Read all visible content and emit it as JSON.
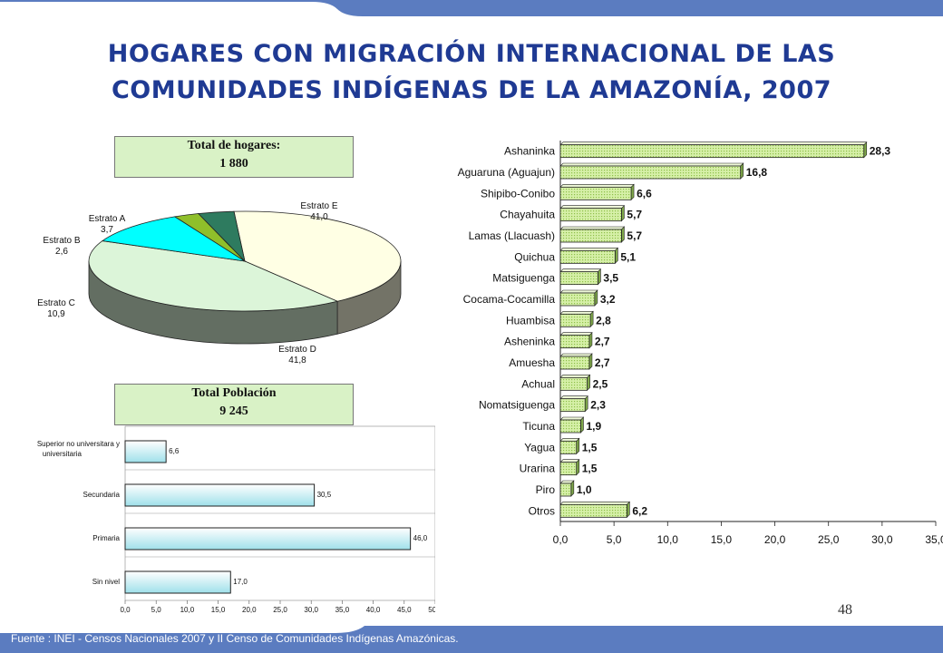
{
  "page": {
    "title_line1": "HOGARES CON MIGRACIÓN INTERNACIONAL DE LAS",
    "title_line2": "COMUNIDADES INDÍGENAS DE LA AMAZONÍA, 2007",
    "page_number": "48",
    "footer_source": "Fuente : INEI - Censos Nacionales 2007 y II Censo de Comunidades Indígenas Amazónicas."
  },
  "colors": {
    "accent_blue": "#5b7cc0",
    "title_blue": "#1f3a93",
    "green_bar": "#c9e89a",
    "cyan_bar": "#bdeef4"
  },
  "chart_data": [
    {
      "type": "pie",
      "header_line1": "Total de hogares:",
      "header_line2": "1 880",
      "slices": [
        {
          "name": "Estrato E",
          "value": 41.0,
          "label_value": "41,0",
          "color": "#ffffe4"
        },
        {
          "name": "Estrato D",
          "value": 41.8,
          "label_value": "41,8",
          "color": "#dcf5d9"
        },
        {
          "name": "Estrato C",
          "value": 10.9,
          "label_value": "10,9",
          "color": "#00ffff"
        },
        {
          "name": "Estrato B",
          "value": 2.6,
          "label_value": "2,6",
          "color": "#8fbf2a"
        },
        {
          "name": "Estrato A",
          "value": 3.7,
          "label_value": "3,7",
          "color": "#2e7b5f"
        }
      ]
    },
    {
      "type": "bar",
      "orientation": "horizontal",
      "header_line1": "Total Población",
      "header_line2": "9 245",
      "categories": [
        "Superior no universitara y universitaria",
        "Secundaria",
        "Primaria",
        "Sin nivel"
      ],
      "values": [
        6.6,
        30.5,
        46.0,
        17.0
      ],
      "value_labels": [
        "6,6",
        "30,5",
        "46,0",
        "17,0"
      ],
      "xlim": [
        0,
        50
      ],
      "ticks": [
        "0,0",
        "5,0",
        "10,0",
        "15,0",
        "20,0",
        "25,0",
        "30,0",
        "35,0",
        "40,0",
        "45,0",
        "50,0"
      ]
    },
    {
      "type": "bar",
      "orientation": "horizontal",
      "categories": [
        "Ashaninka",
        "Aguaruna (Aguajun)",
        "Shipibo-Conibo",
        "Chayahuita",
        "Lamas (Llacuash)",
        "Quichua",
        "Matsiguenga",
        "Cocama-Cocamilla",
        "Huambisa",
        "Asheninka",
        "Amuesha",
        "Achual",
        "Nomatsiguenga",
        "Ticuna",
        "Yagua",
        "Urarina",
        "Piro",
        "Otros"
      ],
      "values": [
        28.3,
        16.8,
        6.6,
        5.7,
        5.7,
        5.1,
        3.5,
        3.2,
        2.8,
        2.7,
        2.7,
        2.5,
        2.3,
        1.9,
        1.5,
        1.5,
        1.0,
        6.2
      ],
      "value_labels": [
        "28,3",
        "16,8",
        "6,6",
        "5,7",
        "5,7",
        "5,1",
        "3,5",
        "3,2",
        "2,8",
        "2,7",
        "2,7",
        "2,5",
        "2,3",
        "1,9",
        "1,5",
        "1,5",
        "1,0",
        "6,2"
      ],
      "xlim": [
        0,
        35
      ],
      "ticks": [
        "0,0",
        "5,0",
        "10,0",
        "15,0",
        "20,0",
        "25,0",
        "30,0",
        "35,0"
      ]
    }
  ]
}
